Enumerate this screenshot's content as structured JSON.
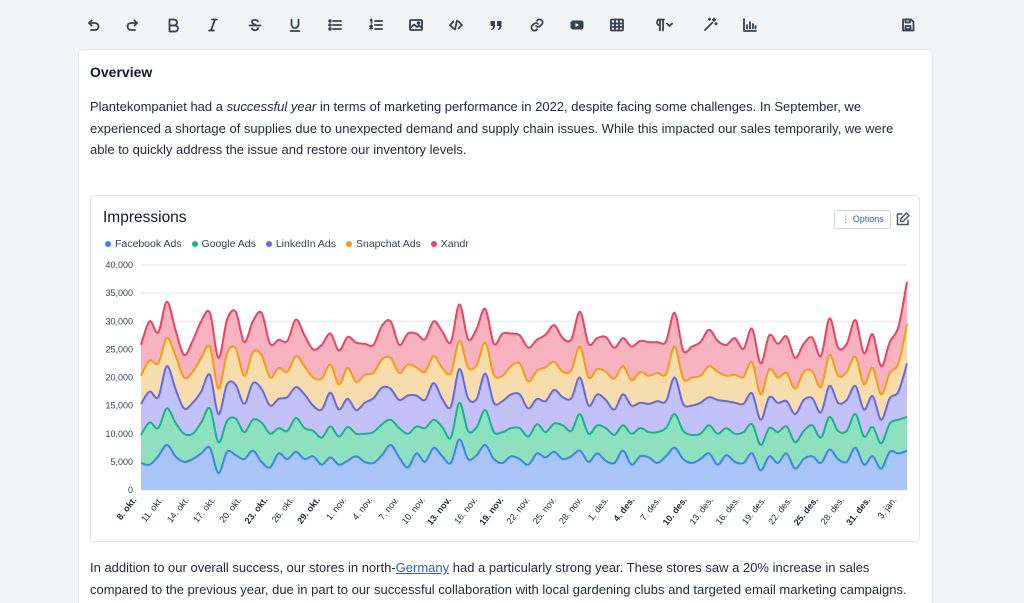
{
  "toolbar": {
    "items": [
      "undo-icon",
      "redo-icon",
      "bold-icon",
      "italic-icon",
      "strikethrough-icon",
      "underline-icon",
      "bullet-list-icon",
      "ordered-list-icon",
      "image-icon",
      "code-icon",
      "quote-icon",
      "link-icon",
      "youtube-icon",
      "table-icon",
      "paragraph-icon",
      "magic-wand-icon",
      "chart-icon",
      "save-icon"
    ]
  },
  "doc": {
    "heading": "Overview",
    "p1_a": "Plantekompaniet had a ",
    "p1_em": "successful year",
    "p1_b": " in terms of marketing performance in 2022, despite facing some challenges. In September, we experienced a shortage of supplies due to unexpected demand and supply chain issues. While this impacted our sales temporarily, we were able to quickly address the issue and restore our inventory levels.",
    "p2_a": "In addition to our overall success, our stores in north-",
    "p2_link": "Germany",
    "p2_b": " had a particularly strong year. These stores saw a 20% increase in sales compared to the previous year, due in part to our successful collaboration with local gardening clubs and targeted email marketing campaigns."
  },
  "chart_card": {
    "options_label": "⋮ Options"
  },
  "chart_data": {
    "type": "area",
    "stacked": true,
    "title": "Impressions",
    "ylim": [
      0,
      40000
    ],
    "yticks": [
      "40,000",
      "35,000",
      "30,000",
      "25,000",
      "20,000",
      "15,000",
      "10,000",
      "5,000",
      "0"
    ],
    "xtick_labels": [
      "8. okt.",
      "11. okt.",
      "14. okt.",
      "17. okt.",
      "20. okt.",
      "23. okt.",
      "26. okt.",
      "29. okt.",
      "1. nov.",
      "4. nov.",
      "7. nov.",
      "10. nov.",
      "13. nov.",
      "16. nov.",
      "19. nov.",
      "22. nov.",
      "25. nov.",
      "28. nov.",
      "1. des.",
      "4. des.",
      "7. des.",
      "10. des.",
      "13. des.",
      "16. des.",
      "19. des.",
      "22. des.",
      "25. des.",
      "28. des.",
      "31. des.",
      "3. jan."
    ],
    "xtick_bold": [
      true,
      false,
      false,
      false,
      false,
      true,
      false,
      true,
      false,
      false,
      false,
      false,
      true,
      false,
      true,
      false,
      false,
      false,
      false,
      true,
      false,
      true,
      false,
      false,
      false,
      false,
      true,
      false,
      true,
      false
    ],
    "grid": true,
    "legend_position": "top-left",
    "series": [
      {
        "name": "Facebook Ads",
        "color": "#3b82f6",
        "fill": "#a9c5f7",
        "values": [
          4800,
          4500,
          6000,
          8000,
          6000,
          5000,
          5500,
          6500,
          7500,
          3000,
          6800,
          6200,
          5500,
          7000,
          5000,
          4000,
          6500,
          5500,
          6800,
          5500,
          6000,
          4500,
          5800,
          4500,
          5200,
          6000,
          5000,
          4800,
          6200,
          8000,
          5800,
          4000,
          6500,
          5000,
          7500,
          6000,
          4800,
          9000,
          5500,
          6200,
          8000,
          5500,
          4800,
          6000,
          5500,
          4500,
          6500,
          5800,
          6800,
          5500,
          6000,
          7000,
          5000,
          6500,
          5200,
          4800,
          7000,
          4500,
          6000,
          5800,
          4800,
          6000,
          7500,
          5500,
          4800,
          5500,
          6500,
          4500,
          6200,
          5000,
          4800,
          6500,
          3500,
          6000,
          4800,
          6500,
          3800,
          5500,
          6000,
          4800,
          7200,
          5500,
          5000,
          7500,
          4500,
          6000,
          3800,
          6800,
          6500,
          7000
        ]
      },
      {
        "name": "Google Ads",
        "color": "#10b981",
        "fill": "#8fe0bf",
        "values": [
          5000,
          7500,
          5000,
          6500,
          6000,
          5000,
          4500,
          5500,
          7000,
          5500,
          5500,
          6500,
          4800,
          5500,
          7000,
          6000,
          4500,
          5000,
          6000,
          5500,
          4500,
          4800,
          5500,
          5000,
          6000,
          4000,
          5000,
          5500,
          5500,
          4500,
          5200,
          6000,
          4800,
          6000,
          5000,
          5200,
          4500,
          6500,
          5000,
          5000,
          6200,
          4800,
          5500,
          5000,
          5500,
          5000,
          5200,
          4500,
          5000,
          6000,
          4500,
          6500,
          5000,
          5000,
          5800,
          5000,
          4500,
          5500,
          5000,
          4500,
          5500,
          5000,
          6000,
          5000,
          5000,
          4500,
          5000,
          5500,
          4800,
          5000,
          5500,
          5200,
          4500,
          5000,
          5500,
          4800,
          4700,
          5000,
          5500,
          4500,
          5800,
          5000,
          5500,
          6000,
          5000,
          5200,
          4500,
          5000,
          6000,
          6000
        ]
      },
      {
        "name": "LinkedIn Ads",
        "color": "#6366f1",
        "fill": "#c3c2f8",
        "values": [
          5500,
          5500,
          5500,
          7500,
          6000,
          4500,
          5500,
          5500,
          6000,
          5000,
          6500,
          6000,
          5000,
          6500,
          6000,
          5000,
          5200,
          6000,
          5500,
          6000,
          4500,
          5000,
          6000,
          4800,
          5000,
          4200,
          5500,
          6000,
          6500,
          5500,
          5000,
          6800,
          5500,
          5000,
          6500,
          5000,
          5500,
          6000,
          5800,
          5000,
          6500,
          5200,
          5500,
          6000,
          6000,
          5000,
          4500,
          5500,
          6000,
          5000,
          5800,
          6500,
          5000,
          5500,
          5000,
          4500,
          5500,
          5000,
          4500,
          5000,
          5500,
          4800,
          6500,
          4800,
          5200,
          5500,
          5000,
          6000,
          4800,
          5500,
          5000,
          5500,
          4500,
          5500,
          5200,
          4500,
          5000,
          5500,
          4800,
          4500,
          5500,
          5000,
          5500,
          5000,
          4800,
          5500,
          4200,
          4500,
          5000,
          9500
        ]
      },
      {
        "name": "Snapchat Ads",
        "color": "#f59e0b",
        "fill": "#f7ddae",
        "values": [
          5000,
          5500,
          6000,
          5000,
          6000,
          5500,
          5500,
          6000,
          5000,
          4500,
          5500,
          6500,
          5000,
          5500,
          6000,
          5000,
          5500,
          4500,
          5500,
          5000,
          5000,
          5500,
          5000,
          4500,
          5500,
          5000,
          5000,
          4500,
          5000,
          5500,
          4800,
          5500,
          5000,
          5000,
          4800,
          5500,
          6000,
          5000,
          5500,
          6000,
          5500,
          5000,
          4500,
          5000,
          5500,
          4800,
          5000,
          6000,
          5000,
          4500,
          5000,
          5500,
          5000,
          4500,
          5000,
          5500,
          5000,
          4500,
          5500,
          5000,
          5000,
          4800,
          5500,
          4500,
          5000,
          4800,
          5500,
          5000,
          4500,
          5000,
          4800,
          5500,
          4500,
          5000,
          4500,
          5000,
          4500,
          5000,
          4800,
          4500,
          5500,
          4800,
          5000,
          5200,
          4500,
          5000,
          4500,
          4500,
          5000,
          7000
        ]
      },
      {
        "name": "Xandr",
        "color": "#f43f5e",
        "fill": "#f8b3c0",
        "values": [
          5500,
          7000,
          5500,
          6500,
          4500,
          4000,
          5500,
          6500,
          6000,
          5500,
          6000,
          6500,
          6000,
          5500,
          7500,
          6000,
          5000,
          5500,
          6500,
          5500,
          5000,
          6000,
          5500,
          6000,
          5500,
          7000,
          5500,
          5000,
          6000,
          6500,
          5000,
          5500,
          6000,
          5800,
          6200,
          6500,
          5500,
          6500,
          5000,
          6500,
          6000,
          5500,
          7500,
          5800,
          5000,
          6000,
          5500,
          5800,
          6500,
          6000,
          5500,
          6200,
          6000,
          5500,
          6200,
          5500,
          5000,
          6000,
          5500,
          6000,
          5500,
          5800,
          6000,
          5000,
          5500,
          6000,
          6500,
          5500,
          5500,
          6500,
          5000,
          6000,
          5500,
          6000,
          6000,
          6500,
          5500,
          5000,
          6000,
          5500,
          6500,
          5000,
          5000,
          6500,
          5500,
          6000,
          5000,
          5500,
          6500,
          7500
        ]
      }
    ]
  }
}
